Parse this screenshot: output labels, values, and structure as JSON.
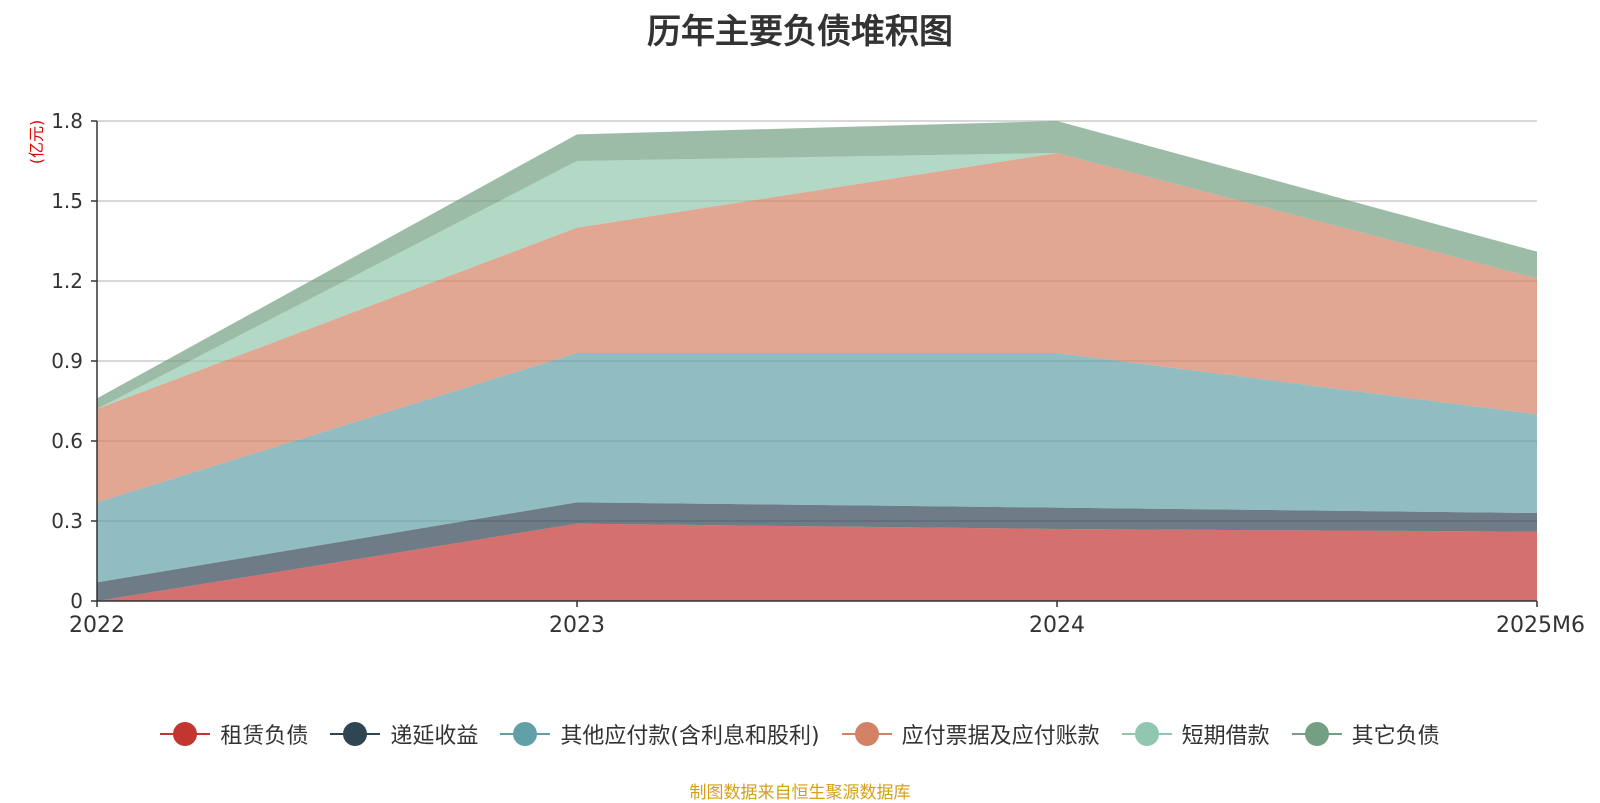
{
  "chart_data": {
    "type": "area",
    "stacked": true,
    "title": "历年主要负债堆积图",
    "ylabel": "(亿元)",
    "xlabel": "",
    "categories": [
      "2022",
      "2023",
      "2024",
      "2025M6"
    ],
    "ylim": [
      0,
      1.8
    ],
    "yticks": [
      "0",
      "0.3",
      "0.6",
      "0.9",
      "1.2",
      "1.5",
      "1.8"
    ],
    "grid": true,
    "legend_position": "bottom",
    "series": [
      {
        "name": "租赁负债",
        "color": "#c23531",
        "values": [
          0.0,
          0.29,
          0.27,
          0.26
        ]
      },
      {
        "name": "递延收益",
        "color": "#2f4554",
        "values": [
          0.07,
          0.08,
          0.08,
          0.07
        ]
      },
      {
        "name": "其他应付款(含利息和股利)",
        "color": "#61a0a8",
        "values": [
          0.3,
          0.56,
          0.58,
          0.37
        ]
      },
      {
        "name": "应付票据及应付账款",
        "color": "#d48265",
        "values": [
          0.35,
          0.47,
          0.75,
          0.51
        ]
      },
      {
        "name": "短期借款",
        "color": "#91c7ae",
        "values": [
          0.0,
          0.25,
          0.0,
          0.0
        ]
      },
      {
        "name": "其它负债",
        "color": "#749f83",
        "values": [
          0.04,
          0.1,
          0.12,
          0.1
        ]
      }
    ]
  },
  "source_note": "制图数据来自恒生聚源数据库"
}
